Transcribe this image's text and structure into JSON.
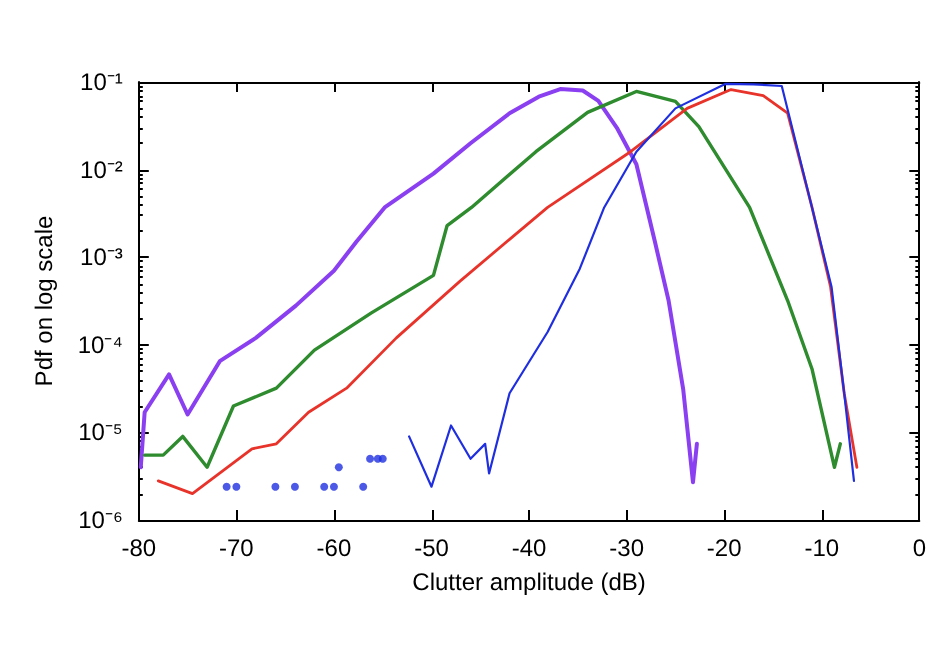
{
  "chart_data": {
    "type": "line",
    "xlabel": "Clutter amplitude (dB)",
    "ylabel": "Pdf on log scale",
    "log": "y",
    "grid": false,
    "marker": "none",
    "line_style": "solid",
    "xlim": [
      -80,
      0
    ],
    "xticks": [
      -80,
      -70,
      -60,
      -50,
      -40,
      -30,
      -20,
      -10,
      0
    ],
    "ylim": [
      1e-06,
      0.1
    ],
    "yticks": [
      {
        "value": 1e-06,
        "label": "10⁻⁶"
      },
      {
        "value": 1e-05,
        "label": "10⁻⁵"
      },
      {
        "value": 0.0001,
        "label": "10⁻⁴"
      },
      {
        "value": 0.001,
        "label": "10⁻³"
      },
      {
        "value": 0.01,
        "label": "10⁻²"
      },
      {
        "value": 0.1,
        "label": "10⁻¹"
      }
    ],
    "series": [
      {
        "color": "#8a3ff0",
        "x": [
          -79.8,
          -79.4,
          -76.9,
          -75,
          -71.7,
          -68,
          -63.9,
          -60,
          -57.7,
          -54.8,
          -49.8,
          -46,
          -42,
          -39,
          -36.8,
          -34.5,
          -32.9,
          -31,
          -29,
          -27.1,
          -25.7,
          -24.2,
          -23.2,
          -22.8
        ],
        "values": [
          4e-06,
          1.7e-05,
          4.6e-05,
          1.6e-05,
          6.5e-05,
          0.00012,
          0.00028,
          0.0007,
          0.0015,
          0.0037,
          0.009,
          0.02,
          0.044,
          0.068,
          0.083,
          0.08,
          0.061,
          0.03,
          0.0115,
          0.0015,
          0.00032,
          3.1e-05,
          2.7e-06,
          7.4e-06
        ]
      },
      {
        "color": "#2e8b2e",
        "x": [
          -79.4,
          -77.5,
          -75.5,
          -73,
          -70.3,
          -65.9,
          -62,
          -56.2,
          -49.8,
          -48.4,
          -45.9,
          -39.3,
          -34,
          -29,
          -25,
          -22.6,
          -17.4,
          -13.5,
          -11,
          -8.7,
          -8.1
        ],
        "values": [
          5.5e-06,
          5.5e-06,
          9e-06,
          4e-06,
          2e-05,
          3.2e-05,
          8.7e-05,
          0.00023,
          0.00062,
          0.0023,
          0.0037,
          0.016,
          0.045,
          0.078,
          0.06,
          0.031,
          0.0037,
          0.00032,
          5.3e-05,
          4e-06,
          7.4e-06
        ]
      },
      {
        "color": "#e8332a",
        "x": [
          -78,
          -74.5,
          -68.4,
          -65.9,
          -62.6,
          -58.7,
          -53.6,
          -47.1,
          -42,
          -38.1,
          -29.6,
          -23.8,
          -19.3,
          -16,
          -13.5,
          -11,
          -9.1,
          -7.7,
          -6.4
        ],
        "values": [
          2.8e-06,
          2e-06,
          6.5e-06,
          7.4e-06,
          1.7e-05,
          3.2e-05,
          0.00012,
          0.00053,
          0.0016,
          0.0037,
          0.016,
          0.05,
          0.082,
          0.07,
          0.044,
          0.0037,
          0.00046,
          2.8e-05,
          4e-06
        ]
      },
      {
        "color": "#1f2fe0",
        "x": [
          -52.3,
          -50,
          -48,
          -46,
          -44.5,
          -44.1,
          -42,
          -38.1,
          -34.8,
          -32.3,
          -29,
          -25,
          -19.9,
          -17,
          -14.1,
          -11,
          -9,
          -7.7,
          -6.7
        ],
        "values": [
          9e-06,
          2.4e-06,
          1.2e-05,
          5e-06,
          7.4e-06,
          3.4e-06,
          2.8e-05,
          0.00014,
          0.00074,
          0.0037,
          0.016,
          0.05,
          0.095,
          0.094,
          0.09,
          0.0037,
          0.00046,
          2.8e-05,
          2.8e-06
        ]
      },
      {
        "type": "scatter",
        "marker": "circle",
        "color": "#1f2fe0",
        "x": [
          -71,
          -70,
          -66,
          -64,
          -61,
          -60,
          -59.5,
          -57,
          -56.3,
          -55.5,
          -55
        ],
        "values": [
          2.4e-06,
          2.4e-06,
          2.4e-06,
          2.4e-06,
          2.4e-06,
          2.4e-06,
          4e-06,
          2.4e-06,
          5e-06,
          5e-06,
          5e-06
        ]
      }
    ]
  }
}
